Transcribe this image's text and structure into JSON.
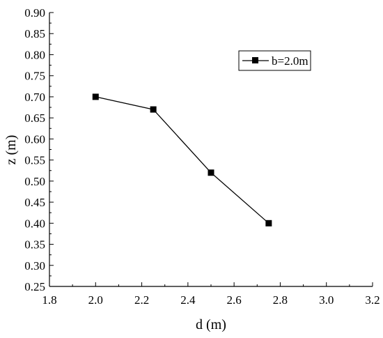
{
  "chart_data": {
    "type": "line",
    "xlabel": "d (m)",
    "ylabel": "z (m)",
    "xlim": [
      1.8,
      3.2
    ],
    "ylim": [
      0.25,
      0.9
    ],
    "x_ticks": [
      "1.8",
      "2.0",
      "2.2",
      "2.4",
      "2.6",
      "2.8",
      "3.0",
      "3.2"
    ],
    "y_ticks": [
      "0.25",
      "0.30",
      "0.35",
      "0.40",
      "0.45",
      "0.50",
      "0.55",
      "0.60",
      "0.65",
      "0.70",
      "0.75",
      "0.80",
      "0.85",
      "0.90"
    ],
    "legend_position": "top-right",
    "grid": false,
    "series": [
      {
        "name": "b=2.0m",
        "marker": "square",
        "color": "#000000",
        "x": [
          2.0,
          2.25,
          2.5,
          2.75
        ],
        "y": [
          0.7,
          0.67,
          0.52,
          0.4
        ]
      }
    ]
  }
}
